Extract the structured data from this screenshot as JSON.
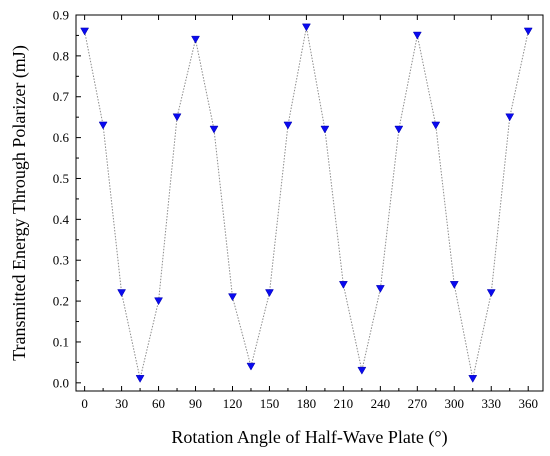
{
  "chart_data": {
    "type": "line",
    "xlabel": "Rotation Angle of Half-Wave Plate (°)",
    "ylabel": "Transmitted Energy Through Polarizer (mJ)",
    "xlim": [
      -7,
      372
    ],
    "ylim": [
      -0.02,
      0.9
    ],
    "xticks": [
      0,
      30,
      60,
      90,
      120,
      150,
      180,
      210,
      240,
      270,
      300,
      330,
      360
    ],
    "xtick_labels": [
      "0",
      "30",
      "60",
      "90",
      "120",
      "150",
      "180",
      "210",
      "240",
      "270",
      "300",
      "330",
      "360"
    ],
    "yticks": [
      0.0,
      0.1,
      0.2,
      0.3,
      0.4,
      0.5,
      0.6,
      0.7,
      0.8,
      0.9
    ],
    "ytick_labels": [
      "0.0",
      "0.1",
      "0.2",
      "0.3",
      "0.4",
      "0.5",
      "0.6",
      "0.7",
      "0.8",
      "0.9"
    ],
    "grid": false,
    "marker": "down-triangle",
    "marker_color": "#0a0aef",
    "line_color": "#8c8c8c",
    "line_style": "dotted",
    "series": [
      {
        "x": [
          0,
          15,
          30,
          45,
          60,
          75,
          90,
          105,
          120,
          135,
          150,
          165,
          180,
          195,
          210,
          225,
          240,
          255,
          270,
          285,
          300,
          315,
          330,
          345,
          360
        ],
        "values": [
          0.86,
          0.63,
          0.22,
          0.01,
          0.2,
          0.65,
          0.84,
          0.62,
          0.21,
          0.04,
          0.22,
          0.63,
          0.87,
          0.62,
          0.24,
          0.03,
          0.23,
          0.62,
          0.85,
          0.63,
          0.24,
          0.01,
          0.22,
          0.65,
          0.86
        ]
      }
    ]
  }
}
